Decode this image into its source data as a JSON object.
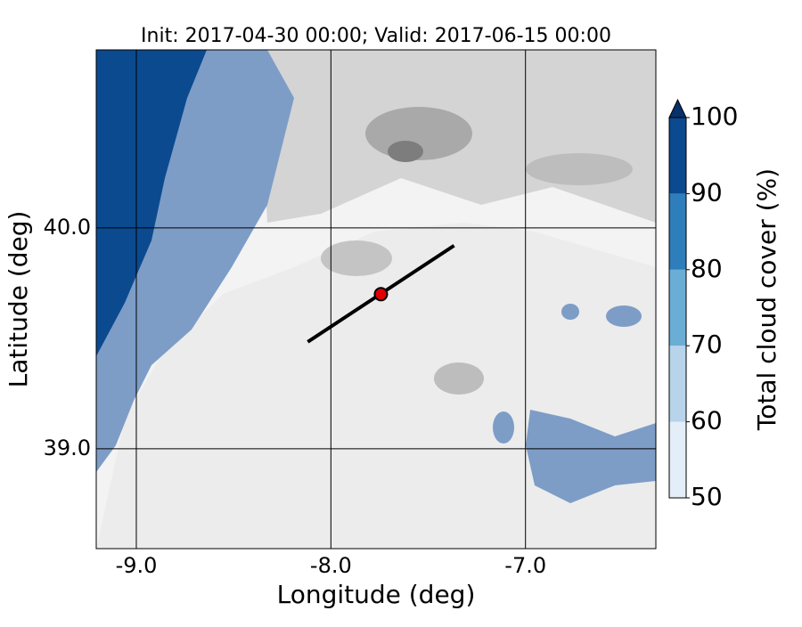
{
  "chart_data": {
    "type": "map",
    "title": "Init: 2017-04-30 00:00; Valid: 2017-06-15 00:00",
    "x_label": "Longitude (deg)",
    "y_label": "Latitude (deg)",
    "xlim": [
      -9.206,
      -6.33
    ],
    "ylim": [
      38.548,
      40.806
    ],
    "xticks": [
      {
        "value": -9,
        "label": "-9.0"
      },
      {
        "value": -8,
        "label": "-8.0"
      },
      {
        "value": -7,
        "label": "-7.0"
      }
    ],
    "yticks": [
      {
        "value": 39,
        "label": "39.0"
      },
      {
        "value": 40,
        "label": "40.0"
      }
    ],
    "section": {
      "start": [
        -8.119,
        39.484
      ],
      "end": [
        -7.367,
        39.92
      ],
      "color": "#000000"
    },
    "point": {
      "lon": -7.743,
      "lat": 39.7,
      "color": "#e00000"
    },
    "colorbar": {
      "label": "Total cloud cover (%)",
      "ticks": [
        50,
        60,
        70,
        80,
        90,
        100
      ],
      "colors": [
        "#e3eef8",
        "#b7d4ea",
        "#6aaed6",
        "#2e7ebc",
        "#0b4a8f"
      ],
      "extend_color": "#08306b"
    }
  }
}
